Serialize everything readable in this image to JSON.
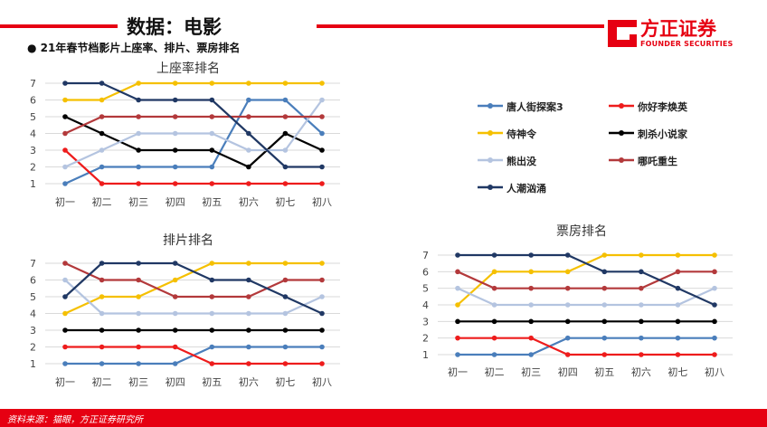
{
  "header": {
    "title": "数据：电影",
    "subtitle": "● 21年春节档影片上座率、排片、票房排名",
    "logo_name": "方正证券",
    "logo_sub": "FOUNDER SECURITIES"
  },
  "footer": {
    "source": "资料来源：猫眼，方正证券研究所"
  },
  "colors": {
    "brand": "#e60012"
  },
  "legend": [
    {
      "name": "唐人街探案3",
      "color": "#4a7ebb"
    },
    {
      "name": "你好李焕英",
      "color": "#ee1c1c"
    },
    {
      "name": "侍神令",
      "color": "#f5c000"
    },
    {
      "name": "刺杀小说家",
      "color": "#000000"
    },
    {
      "name": "熊出没",
      "color": "#b4c4e0"
    },
    {
      "name": "哪吒重生",
      "color": "#b3393b"
    },
    {
      "name": "人潮汹涌",
      "color": "#203864"
    }
  ],
  "chart_data": [
    {
      "type": "line",
      "title": "上座率排名",
      "categories": [
        "初一",
        "初二",
        "初三",
        "初四",
        "初五",
        "初六",
        "初七",
        "初八"
      ],
      "ylim": [
        1,
        7
      ],
      "yticks": [
        "1",
        "2",
        "3",
        "4",
        "5",
        "6",
        "7"
      ],
      "grid": true,
      "series": [
        {
          "name": "唐人街探案3",
          "color": "#4a7ebb",
          "values": [
            1,
            2,
            2,
            2,
            2,
            6,
            6,
            4
          ]
        },
        {
          "name": "你好李焕英",
          "color": "#ee1c1c",
          "values": [
            3,
            1,
            1,
            1,
            1,
            1,
            1,
            1
          ]
        },
        {
          "name": "侍神令",
          "color": "#f5c000",
          "values": [
            6,
            6,
            7,
            7,
            7,
            7,
            7,
            7
          ]
        },
        {
          "name": "刺杀小说家",
          "color": "#000000",
          "values": [
            5,
            4,
            3,
            3,
            3,
            2,
            4,
            3
          ]
        },
        {
          "name": "熊出没",
          "color": "#b4c4e0",
          "values": [
            2,
            3,
            4,
            4,
            4,
            3,
            3,
            6
          ]
        },
        {
          "name": "哪吒重生",
          "color": "#b3393b",
          "values": [
            4,
            5,
            5,
            5,
            5,
            5,
            5,
            5
          ]
        },
        {
          "name": "人潮汹涌",
          "color": "#203864",
          "values": [
            7,
            7,
            6,
            6,
            6,
            4,
            2,
            2
          ]
        }
      ]
    },
    {
      "type": "line",
      "title": "排片排名",
      "categories": [
        "初一",
        "初二",
        "初三",
        "初四",
        "初五",
        "初六",
        "初七",
        "初八"
      ],
      "ylim": [
        1,
        7
      ],
      "yticks": [
        "1",
        "2",
        "3",
        "4",
        "5",
        "6",
        "7"
      ],
      "grid": true,
      "series": [
        {
          "name": "唐人街探案3",
          "color": "#4a7ebb",
          "values": [
            1,
            1,
            1,
            1,
            2,
            2,
            2,
            2
          ]
        },
        {
          "name": "你好李焕英",
          "color": "#ee1c1c",
          "values": [
            2,
            2,
            2,
            2,
            1,
            1,
            1,
            1
          ]
        },
        {
          "name": "侍神令",
          "color": "#f5c000",
          "values": [
            4,
            5,
            5,
            6,
            7,
            7,
            7,
            7
          ]
        },
        {
          "name": "刺杀小说家",
          "color": "#000000",
          "values": [
            3,
            3,
            3,
            3,
            3,
            3,
            3,
            3
          ]
        },
        {
          "name": "熊出没",
          "color": "#b4c4e0",
          "values": [
            6,
            4,
            4,
            4,
            4,
            4,
            4,
            5
          ]
        },
        {
          "name": "哪吒重生",
          "color": "#b3393b",
          "values": [
            7,
            6,
            6,
            5,
            5,
            5,
            6,
            6
          ]
        },
        {
          "name": "人潮汹涌",
          "color": "#203864",
          "values": [
            5,
            7,
            7,
            7,
            6,
            6,
            5,
            4
          ]
        }
      ]
    },
    {
      "type": "line",
      "title": "票房排名",
      "categories": [
        "初一",
        "初二",
        "初三",
        "初四",
        "初五",
        "初六",
        "初七",
        "初八"
      ],
      "ylim": [
        1,
        7
      ],
      "yticks": [
        "1",
        "2",
        "3",
        "4",
        "5",
        "6",
        "7"
      ],
      "grid": true,
      "series": [
        {
          "name": "唐人街探案3",
          "color": "#4a7ebb",
          "values": [
            1,
            1,
            1,
            2,
            2,
            2,
            2,
            2
          ]
        },
        {
          "name": "你好李焕英",
          "color": "#ee1c1c",
          "values": [
            2,
            2,
            2,
            1,
            1,
            1,
            1,
            1
          ]
        },
        {
          "name": "侍神令",
          "color": "#f5c000",
          "values": [
            4,
            6,
            6,
            6,
            7,
            7,
            7,
            7
          ]
        },
        {
          "name": "刺杀小说家",
          "color": "#000000",
          "values": [
            3,
            3,
            3,
            3,
            3,
            3,
            3,
            3
          ]
        },
        {
          "name": "熊出没",
          "color": "#b4c4e0",
          "values": [
            5,
            4,
            4,
            4,
            4,
            4,
            4,
            5
          ]
        },
        {
          "name": "哪吒重生",
          "color": "#b3393b",
          "values": [
            6,
            5,
            5,
            5,
            5,
            5,
            6,
            6
          ]
        },
        {
          "name": "人潮汹涌",
          "color": "#203864",
          "values": [
            7,
            7,
            7,
            7,
            6,
            6,
            5,
            4
          ]
        }
      ]
    }
  ]
}
